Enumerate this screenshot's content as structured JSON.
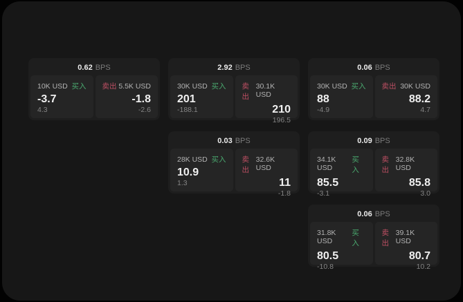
{
  "colors": {
    "outer_bg": "#020202",
    "page_bg": "#171717",
    "card_bg": "#1e1e1e",
    "panel_bg": "#252525",
    "buy_green": "#4aa96f",
    "sell_red": "#bd4f63",
    "price_white": "#f0f0f0",
    "amount_gray": "#b3b3b3",
    "delta_gray": "#858585",
    "bps_gray": "#7c7c7c"
  },
  "labels": {
    "bps_unit": "BPS",
    "buy": "买入",
    "sell": "卖出"
  },
  "cards": [
    {
      "row": 1,
      "col": 1,
      "bps_value": "0.62",
      "buy": {
        "amount": "10K USD",
        "price": "-3.7",
        "delta": "4.3"
      },
      "sell": {
        "amount": "5.5K USD",
        "price": "-1.8",
        "delta": "-2.6"
      }
    },
    {
      "row": 1,
      "col": 2,
      "bps_value": "2.92",
      "buy": {
        "amount": "30K USD",
        "price": "201",
        "delta": "-188.1"
      },
      "sell": {
        "amount": "30.1K USD",
        "price": "210",
        "delta": "196.5"
      }
    },
    {
      "row": 1,
      "col": 3,
      "bps_value": "0.06",
      "buy": {
        "amount": "30K USD",
        "price": "88",
        "delta": "-4.9"
      },
      "sell": {
        "amount": "30K USD",
        "price": "88.2",
        "delta": "4.7"
      }
    },
    {
      "row": 2,
      "col": 2,
      "bps_value": "0.03",
      "buy": {
        "amount": "28K USD",
        "price": "10.9",
        "delta": "1.3"
      },
      "sell": {
        "amount": "32.6K USD",
        "price": "11",
        "delta": "-1.8"
      }
    },
    {
      "row": 2,
      "col": 3,
      "bps_value": "0.09",
      "buy": {
        "amount": "34.1K USD",
        "price": "85.5",
        "delta": "-3.1"
      },
      "sell": {
        "amount": "32.8K USD",
        "price": "85.8",
        "delta": "3.0"
      }
    },
    {
      "row": 3,
      "col": 3,
      "bps_value": "0.06",
      "buy": {
        "amount": "31.8K USD",
        "price": "80.5",
        "delta": "-10.8"
      },
      "sell": {
        "amount": "39.1K USD",
        "price": "80.7",
        "delta": "10.2"
      }
    }
  ]
}
